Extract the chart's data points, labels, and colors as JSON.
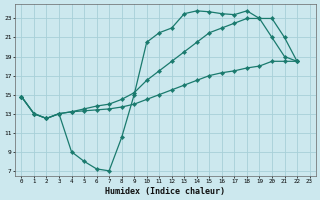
{
  "xlabel": "Humidex (Indice chaleur)",
  "bg_color": "#cce8ee",
  "grid_color": "#a8d0d8",
  "line_color": "#1a7a6e",
  "xlim": [
    -0.5,
    23.5
  ],
  "ylim": [
    6.5,
    24.5
  ],
  "yticks": [
    7,
    9,
    11,
    13,
    15,
    17,
    19,
    21,
    23
  ],
  "xticks": [
    0,
    1,
    2,
    3,
    4,
    5,
    6,
    7,
    8,
    9,
    10,
    11,
    12,
    13,
    14,
    15,
    16,
    17,
    18,
    19,
    20,
    21,
    22,
    23
  ],
  "line1_x": [
    0,
    1,
    2,
    3,
    4,
    5,
    6,
    7,
    8,
    9,
    10,
    11,
    12,
    13,
    14,
    15,
    16,
    17,
    18,
    19,
    20,
    21,
    22
  ],
  "line1_y": [
    14.8,
    13.0,
    12.5,
    13.0,
    9.0,
    8.0,
    7.2,
    7.0,
    10.5,
    15.0,
    20.5,
    21.5,
    22.0,
    23.5,
    23.8,
    23.7,
    23.5,
    23.4,
    23.8,
    23.0,
    21.0,
    19.0,
    18.5
  ],
  "line2_x": [
    0,
    1,
    2,
    3,
    4,
    5,
    6,
    7,
    8,
    9,
    10,
    11,
    12,
    13,
    14,
    15,
    16,
    17,
    18,
    19,
    20,
    21,
    22
  ],
  "line2_y": [
    14.8,
    13.0,
    12.5,
    13.0,
    13.2,
    13.3,
    13.4,
    13.5,
    13.7,
    14.0,
    14.5,
    15.0,
    15.5,
    16.0,
    16.5,
    17.0,
    17.3,
    17.5,
    17.8,
    18.0,
    18.5,
    18.5,
    18.5
  ],
  "line3_x": [
    0,
    1,
    2,
    3,
    4,
    5,
    6,
    7,
    8,
    9,
    10,
    11,
    12,
    13,
    14,
    15,
    16,
    17,
    18,
    19,
    20,
    21,
    22
  ],
  "line3_y": [
    14.8,
    13.0,
    12.5,
    13.0,
    13.2,
    13.5,
    13.8,
    14.0,
    14.5,
    15.2,
    16.5,
    17.5,
    18.5,
    19.5,
    20.5,
    21.5,
    22.0,
    22.5,
    23.0,
    23.0,
    23.0,
    21.0,
    18.5
  ]
}
